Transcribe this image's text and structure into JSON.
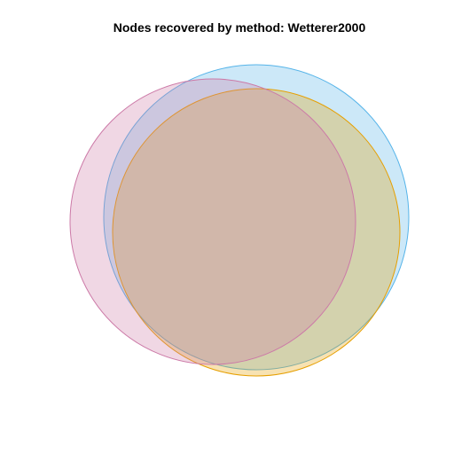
{
  "chart_data": {
    "type": "venn",
    "title": "Nodes recovered by method: Wetterer2000",
    "sets": [
      {
        "key": "blue",
        "color": "#56B4E9",
        "fill_opacity": 0.3
      },
      {
        "key": "orange",
        "color": "#E69F00",
        "fill_opacity": 0.3
      },
      {
        "key": "pink",
        "color": "#CC79A7",
        "fill_opacity": 0.3
      }
    ],
    "labels_shown": false,
    "legend": "none",
    "grid": false
  }
}
